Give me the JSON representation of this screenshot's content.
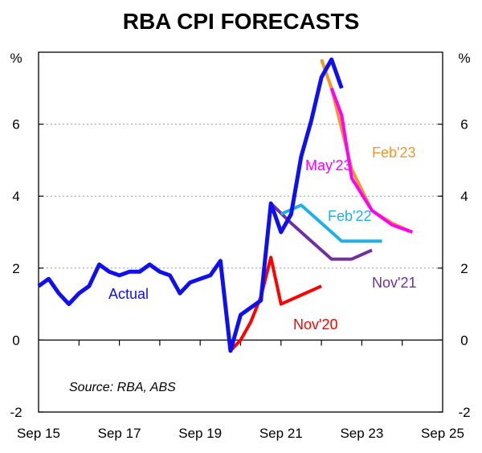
{
  "chart_data": {
    "type": "line",
    "title": "RBA CPI FORECASTS",
    "ylabel_left": "%",
    "ylabel_right": "%",
    "ylim": [
      -2,
      8
    ],
    "yticks": [
      "-2",
      "0",
      "2",
      "4",
      "6"
    ],
    "xlim": [
      "2015-09",
      "2025-09"
    ],
    "xticks": [
      "Sep 15",
      "Sep 17",
      "Sep 19",
      "Sep 21",
      "Sep 23",
      "Sep 25"
    ],
    "grid": "horizontal dashed",
    "source": "Source: RBA, ABS",
    "series": [
      {
        "name": "Nov'20",
        "color": "#ff0000",
        "points": [
          {
            "t": 2020.5,
            "v": -0.3
          },
          {
            "t": 2020.75,
            "v": 0.0
          },
          {
            "t": 2021.0,
            "v": 0.5
          },
          {
            "t": 2021.25,
            "v": 1.2
          },
          {
            "t": 2021.5,
            "v": 2.3
          },
          {
            "t": 2021.75,
            "v": 1.0
          },
          {
            "t": 2022.25,
            "v": 1.25
          },
          {
            "t": 2022.75,
            "v": 1.5
          }
        ]
      },
      {
        "name": "Nov'21",
        "color": "#7030a0",
        "points": [
          {
            "t": 2021.5,
            "v": 3.8
          },
          {
            "t": 2022.0,
            "v": 3.25
          },
          {
            "t": 2022.5,
            "v": 2.75
          },
          {
            "t": 2023.0,
            "v": 2.25
          },
          {
            "t": 2023.5,
            "v": 2.25
          },
          {
            "t": 2024.0,
            "v": 2.5
          }
        ]
      },
      {
        "name": "Feb'22",
        "color": "#1fb0e8",
        "points": [
          {
            "t": 2021.75,
            "v": 3.5
          },
          {
            "t": 2022.25,
            "v": 3.75
          },
          {
            "t": 2022.75,
            "v": 3.25
          },
          {
            "t": 2023.25,
            "v": 2.75
          },
          {
            "t": 2024.25,
            "v": 2.75
          }
        ]
      },
      {
        "name": "Feb'23",
        "color": "#f0962a",
        "points": [
          {
            "t": 2022.75,
            "v": 7.8
          },
          {
            "t": 2023.0,
            "v": 7.0
          },
          {
            "t": 2023.5,
            "v": 4.75
          },
          {
            "t": 2024.0,
            "v": 3.6
          },
          {
            "t": 2024.5,
            "v": 3.25
          },
          {
            "t": 2025.0,
            "v": 3.0
          }
        ]
      },
      {
        "name": "May'23",
        "color": "#ff00ff",
        "points": [
          {
            "t": 2023.0,
            "v": 7.0
          },
          {
            "t": 2023.25,
            "v": 6.25
          },
          {
            "t": 2023.5,
            "v": 4.5
          },
          {
            "t": 2024.0,
            "v": 3.6
          },
          {
            "t": 2024.5,
            "v": 3.2
          },
          {
            "t": 2025.0,
            "v": 3.0
          }
        ]
      },
      {
        "name": "Actual",
        "color": "#1010ee",
        "points": [
          {
            "t": 2015.75,
            "v": 1.5
          },
          {
            "t": 2016.0,
            "v": 1.7
          },
          {
            "t": 2016.25,
            "v": 1.3
          },
          {
            "t": 2016.5,
            "v": 1.0
          },
          {
            "t": 2016.75,
            "v": 1.3
          },
          {
            "t": 2017.0,
            "v": 1.5
          },
          {
            "t": 2017.25,
            "v": 2.1
          },
          {
            "t": 2017.5,
            "v": 1.9
          },
          {
            "t": 2017.75,
            "v": 1.8
          },
          {
            "t": 2018.0,
            "v": 1.9
          },
          {
            "t": 2018.25,
            "v": 1.9
          },
          {
            "t": 2018.5,
            "v": 2.1
          },
          {
            "t": 2018.75,
            "v": 1.9
          },
          {
            "t": 2019.0,
            "v": 1.8
          },
          {
            "t": 2019.25,
            "v": 1.3
          },
          {
            "t": 2019.5,
            "v": 1.6
          },
          {
            "t": 2019.75,
            "v": 1.7
          },
          {
            "t": 2020.0,
            "v": 1.8
          },
          {
            "t": 2020.25,
            "v": 2.2
          },
          {
            "t": 2020.5,
            "v": -0.3
          },
          {
            "t": 2020.75,
            "v": 0.7
          },
          {
            "t": 2021.0,
            "v": 0.9
          },
          {
            "t": 2021.25,
            "v": 1.1
          },
          {
            "t": 2021.5,
            "v": 3.8
          },
          {
            "t": 2021.75,
            "v": 3.0
          },
          {
            "t": 2022.0,
            "v": 3.5
          },
          {
            "t": 2022.25,
            "v": 5.1
          },
          {
            "t": 2022.5,
            "v": 6.1
          },
          {
            "t": 2022.75,
            "v": 7.3
          },
          {
            "t": 2023.0,
            "v": 7.8
          },
          {
            "t": 2023.25,
            "v": 7.0
          }
        ]
      }
    ],
    "labels": {
      "actual": "Actual",
      "nov20": "Nov'20",
      "nov21": "Nov'21",
      "feb22": "Feb'22",
      "feb23": "Feb'23",
      "may23": "May'23"
    }
  }
}
